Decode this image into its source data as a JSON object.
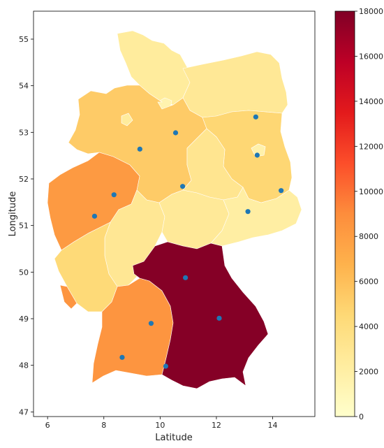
{
  "chart_data": {
    "type": "choropleth",
    "xlabel": "Latitude",
    "ylabel": "Longitude",
    "xlim": [
      5.5,
      15.5
    ],
    "ylim": [
      46.9,
      55.6
    ],
    "xticks": [
      6,
      8,
      10,
      12,
      14
    ],
    "yticks": [
      47,
      48,
      49,
      50,
      51,
      52,
      53,
      54,
      55
    ],
    "colorbar": {
      "range": [
        0,
        18000
      ],
      "ticks": [
        0,
        2000,
        4000,
        6000,
        8000,
        10000,
        12000,
        14000,
        16000,
        18000
      ],
      "colormap": "YlOrRd",
      "stops": [
        "#ffffcc",
        "#ffeda0",
        "#fed976",
        "#feb24c",
        "#fd8d3c",
        "#fc4e2a",
        "#e31a1c",
        "#bd0026",
        "#800026"
      ]
    },
    "points": [
      {
        "x": 13.4,
        "y": 53.33
      },
      {
        "x": 10.55,
        "y": 52.99
      },
      {
        "x": 9.28,
        "y": 52.64
      },
      {
        "x": 13.45,
        "y": 52.51
      },
      {
        "x": 8.36,
        "y": 51.66
      },
      {
        "x": 10.8,
        "y": 51.84
      },
      {
        "x": 14.3,
        "y": 51.75
      },
      {
        "x": 7.67,
        "y": 51.2
      },
      {
        "x": 13.12,
        "y": 51.3
      },
      {
        "x": 10.9,
        "y": 49.88
      },
      {
        "x": 12.1,
        "y": 49.01
      },
      {
        "x": 9.68,
        "y": 48.9
      },
      {
        "x": 8.65,
        "y": 48.17
      },
      {
        "x": 10.2,
        "y": 47.98
      }
    ],
    "point_color": "#1f77b4",
    "regions": [
      {
        "value": 2800
      },
      {
        "value": 2400
      },
      {
        "value": 3100
      },
      {
        "value": 5300
      },
      {
        "value": 1500
      },
      {
        "value": 4600
      },
      {
        "value": 4400
      },
      {
        "value": 3800
      },
      {
        "value": 2900
      },
      {
        "value": 8200
      },
      {
        "value": 2700
      },
      {
        "value": 2100
      },
      {
        "value": 1700
      },
      {
        "value": 8500
      },
      {
        "value": 17800
      },
      {
        "value": 2400
      }
    ]
  }
}
